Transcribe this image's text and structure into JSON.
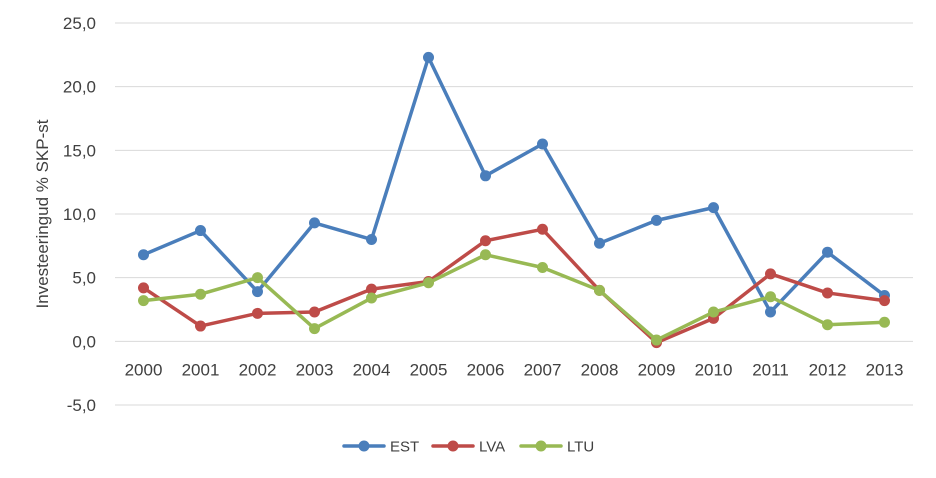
{
  "chart_data": {
    "type": "line",
    "ylabel": "Investeeringud % SKP-st",
    "xlabel": "",
    "categories": [
      "2000",
      "2001",
      "2002",
      "2003",
      "2004",
      "2005",
      "2006",
      "2007",
      "2008",
      "2009",
      "2010",
      "2011",
      "2012",
      "2013"
    ],
    "ylim": [
      -5,
      25
    ],
    "yticks": [
      -5,
      0,
      5,
      10,
      15,
      20,
      25
    ],
    "ytick_labels": [
      "-5,0",
      "0,0",
      "5,0",
      "10,0",
      "15,0",
      "20,0",
      "25,0"
    ],
    "grid": true,
    "legend_position": "bottom",
    "series": [
      {
        "name": "EST",
        "color": "#4a7ebb",
        "values": [
          6.8,
          8.7,
          3.9,
          9.3,
          8.0,
          22.3,
          13.0,
          15.5,
          7.7,
          9.5,
          10.5,
          2.3,
          7.0,
          3.6
        ]
      },
      {
        "name": "LVA",
        "color": "#be4b48",
        "values": [
          4.2,
          1.2,
          2.2,
          2.3,
          4.1,
          4.7,
          7.9,
          8.8,
          4.0,
          -0.1,
          1.8,
          5.3,
          3.8,
          3.2
        ]
      },
      {
        "name": "LTU",
        "color": "#98b954",
        "values": [
          3.2,
          3.7,
          5.0,
          1.0,
          3.4,
          4.6,
          6.8,
          5.8,
          4.0,
          0.1,
          2.3,
          3.5,
          1.3,
          1.5
        ]
      }
    ]
  }
}
